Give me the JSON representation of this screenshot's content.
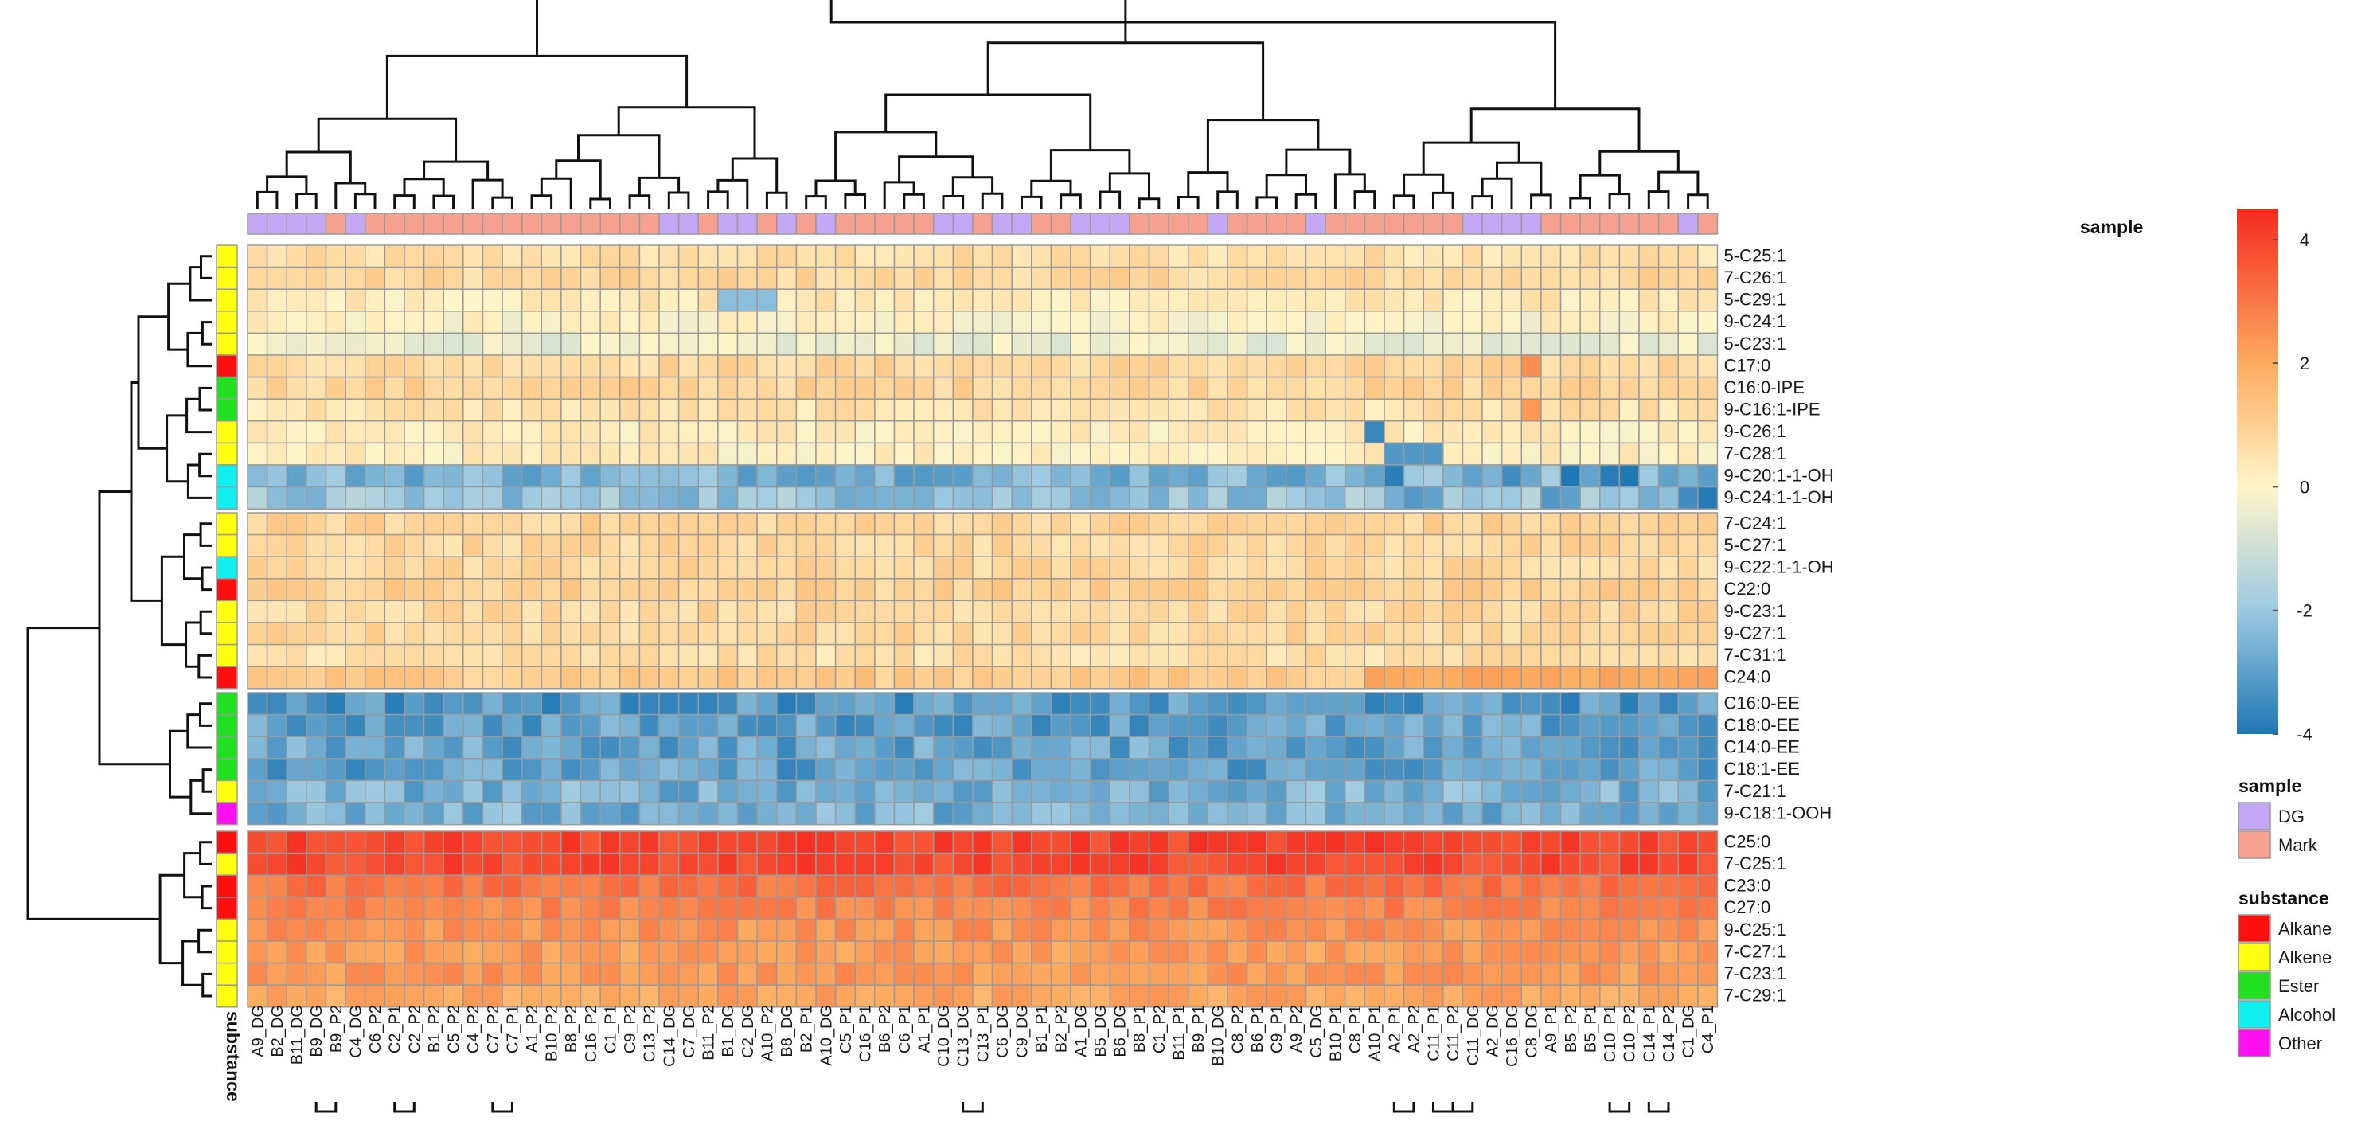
{
  "chart_data": {
    "type": "heatmap",
    "row_labels": [
      "5-C25:1",
      "7-C26:1",
      "5-C29:1",
      "9-C24:1",
      "5-C23:1",
      "C17:0",
      "C16:0-IPE",
      "9-C16:1-IPE",
      "9-C26:1",
      "7-C28:1",
      "9-C20:1-1-OH",
      "9-C24:1-1-OH",
      "7-C24:1",
      "5-C27:1",
      "9-C22:1-1-OH",
      "C22:0",
      "9-C23:1",
      "9-C27:1",
      "7-C31:1",
      "C24:0",
      "C16:0-EE",
      "C18:0-EE",
      "C14:0-EE",
      "C18:1-EE",
      "7-C21:1",
      "9-C18:1-OOH",
      "C25:0",
      "7-C25:1",
      "C23:0",
      "C27:0",
      "9-C25:1",
      "7-C27:1",
      "7-C23:1",
      "7-C29:1"
    ],
    "row_groups": [
      12,
      8,
      6,
      8
    ],
    "row_substance": [
      "Alkene",
      "Alkene",
      "Alkene",
      "Alkene",
      "Alkene",
      "Alkane",
      "Ester",
      "Ester",
      "Alkene",
      "Alkene",
      "Alcohol",
      "Alcohol",
      "Alkene",
      "Alkene",
      "Alcohol",
      "Alkane",
      "Alkene",
      "Alkene",
      "Alkene",
      "Alkane",
      "Ester",
      "Ester",
      "Ester",
      "Ester",
      "Alkene",
      "Other",
      "Alkane",
      "Alkene",
      "Alkane",
      "Alkane",
      "Alkene",
      "Alkene",
      "Alkene",
      "Alkene"
    ],
    "row_baseline": [
      0.6,
      0.8,
      0.3,
      0.0,
      -0.4,
      0.8,
      0.9,
      0.5,
      0.2,
      0.2,
      -2.5,
      -2.1,
      0.9,
      0.8,
      0.8,
      1.0,
      0.8,
      0.8,
      0.6,
      1.2,
      -3.2,
      -3.0,
      -2.9,
      -3.0,
      -2.6,
      -2.6,
      4.0,
      3.9,
      3.1,
      2.8,
      2.5,
      2.3,
      2.4,
      2.1
    ],
    "col_labels": [
      "A9_DG",
      "B2_DG",
      "B11_DG",
      "B9_DG",
      "B9_P2",
      "C4_DG",
      "C6_P2",
      "C2_P1",
      "C2_P2",
      "B1_P2",
      "C5_P2",
      "C4_P2",
      "C7_P2",
      "C7_P1",
      "A1_P2",
      "B10_P2",
      "B8_P2",
      "C16_P2",
      "C1_P1",
      "C9_P2",
      "C13_P2",
      "C14_DG",
      "C7_DG",
      "B11_P2",
      "B1_DG",
      "C2_DG",
      "A10_P2",
      "B8_DG",
      "B2_P1",
      "A10_DG",
      "C5_P1",
      "C16_P1",
      "B6_P2",
      "C6_P1",
      "A1_P1",
      "C10_DG",
      "C13_DG",
      "C13_P1",
      "C6_DG",
      "C9_DG",
      "B1_P1",
      "B2_P2",
      "A1_DG",
      "B5_DG",
      "B6_DG",
      "B8_P1",
      "C1_P2",
      "B11_P1",
      "B9_P1",
      "B10_DG",
      "C8_P2",
      "B6_P1",
      "C9_P1",
      "A9_P2",
      "C5_DG",
      "B10_P1",
      "C8_P1",
      "A10_P1",
      "A2_P1",
      "A2_P2",
      "C11_P1",
      "C11_P2",
      "C11_DG",
      "A2_DG",
      "C16_DG",
      "C8_DG",
      "A9_P1",
      "B5_P2",
      "B5_P1",
      "C10_P1",
      "C10_P2",
      "C14_P1",
      "C14_P2",
      "C1_DG",
      "C4_P1"
    ],
    "col_sample": [
      "DG",
      "DG",
      "DG",
      "DG",
      "Mark",
      "DG",
      "Mark",
      "Mark",
      "Mark",
      "Mark",
      "Mark",
      "Mark",
      "Mark",
      "Mark",
      "Mark",
      "Mark",
      "Mark",
      "Mark",
      "Mark",
      "Mark",
      "Mark",
      "DG",
      "DG",
      "Mark",
      "DG",
      "DG",
      "Mark",
      "DG",
      "Mark",
      "DG",
      "Mark",
      "Mark",
      "Mark",
      "Mark",
      "Mark",
      "DG",
      "DG",
      "Mark",
      "DG",
      "DG",
      "Mark",
      "Mark",
      "DG",
      "DG",
      "DG",
      "Mark",
      "Mark",
      "Mark",
      "Mark",
      "DG",
      "Mark",
      "Mark",
      "Mark",
      "Mark",
      "DG",
      "Mark",
      "Mark",
      "Mark",
      "Mark",
      "Mark",
      "Mark",
      "Mark",
      "DG",
      "DG",
      "DG",
      "DG",
      "Mark",
      "Mark",
      "Mark",
      "Mark",
      "Mark",
      "Mark",
      "Mark",
      "DG",
      "Mark"
    ],
    "bracket_pairs": [
      [
        3,
        4
      ],
      [
        7,
        8
      ],
      [
        12,
        13
      ],
      [
        36,
        37
      ],
      [
        58,
        59
      ],
      [
        60,
        61
      ],
      [
        61,
        62
      ],
      [
        69,
        70
      ],
      [
        71,
        72
      ]
    ],
    "color_scale": {
      "min": -4,
      "max": 4.5,
      "ticks": [
        4,
        2,
        0,
        -2,
        -4
      ],
      "colors": [
        "#1f77b4",
        "#9ecae1",
        "#fff5c8",
        "#fdae61",
        "#f5291f"
      ]
    },
    "legend": {
      "sample_title": "sample",
      "samples": [
        {
          "name": "DG",
          "color": "#c5a8f5"
        },
        {
          "name": "Mark",
          "color": "#f6a090"
        }
      ],
      "substance_title": "substance",
      "substances": [
        {
          "name": "Alkane",
          "color": "#ff1010"
        },
        {
          "name": "Alkene",
          "color": "#ffff10"
        },
        {
          "name": "Ester",
          "color": "#20e020"
        },
        {
          "name": "Alcohol",
          "color": "#10f0f0"
        },
        {
          "name": "Other",
          "color": "#ff10f0"
        }
      ]
    },
    "sample_bar_label": "sample",
    "substance_bar_label": "substance"
  }
}
